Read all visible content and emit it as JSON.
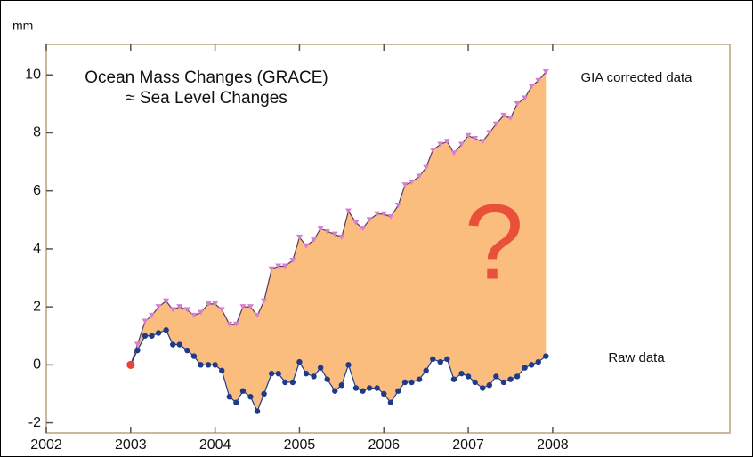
{
  "chart_data": {
    "type": "line",
    "ylabel": "mm",
    "annotations": [
      "Ocean Mass Changes (GRACE)",
      "≈ Sea Level Changes",
      "?"
    ],
    "x": [
      2003,
      2003.08,
      2003.17,
      2003.25,
      2003.33,
      2003.42,
      2003.5,
      2003.58,
      2003.67,
      2003.75,
      2003.83,
      2003.92,
      2004,
      2004.08,
      2004.17,
      2004.25,
      2004.33,
      2004.42,
      2004.5,
      2004.58,
      2004.67,
      2004.75,
      2004.83,
      2004.92,
      2005,
      2005.08,
      2005.17,
      2005.25,
      2005.33,
      2005.42,
      2005.5,
      2005.58,
      2005.67,
      2005.75,
      2005.83,
      2005.92,
      2006,
      2006.08,
      2006.17,
      2006.25,
      2006.33,
      2006.42,
      2006.5,
      2006.58,
      2006.67,
      2006.75,
      2006.83,
      2006.92,
      2007,
      2007.08,
      2007.17,
      2007.25,
      2007.33,
      2007.42,
      2007.5,
      2007.58,
      2007.67,
      2007.75,
      2007.83,
      2007.92
    ],
    "series": [
      {
        "name": "GIA corrected data",
        "color": "#d67fd0",
        "line_color": "#5a3d5a",
        "values": [
          0,
          0.7,
          1.5,
          1.7,
          2.0,
          2.2,
          1.9,
          2.0,
          1.9,
          1.7,
          1.8,
          2.1,
          2.1,
          1.9,
          1.4,
          1.4,
          2.0,
          2.0,
          1.7,
          2.2,
          3.3,
          3.4,
          3.4,
          3.6,
          4.4,
          4.1,
          4.3,
          4.7,
          4.6,
          4.5,
          4.4,
          5.3,
          4.9,
          4.7,
          5.0,
          5.2,
          5.2,
          5.1,
          5.5,
          6.2,
          6.3,
          6.5,
          6.8,
          7.4,
          7.6,
          7.7,
          7.3,
          7.6,
          7.9,
          7.8,
          7.7,
          8.0,
          8.3,
          8.6,
          8.5,
          9.0,
          9.2,
          9.6,
          9.8,
          10.1
        ]
      },
      {
        "name": "Raw data",
        "color": "#1f3a8a",
        "line_color": "#1f3a8a",
        "values": [
          0,
          0.5,
          1.0,
          1.0,
          1.1,
          1.2,
          0.7,
          0.7,
          0.5,
          0.3,
          0,
          0,
          0,
          -0.2,
          -1.1,
          -1.3,
          -0.9,
          -1.1,
          -1.6,
          -1.0,
          -0.3,
          -0.3,
          -0.6,
          -0.6,
          0.1,
          -0.3,
          -0.4,
          -0.1,
          -0.5,
          -0.9,
          -0.7,
          0,
          -0.8,
          -0.9,
          -0.8,
          -0.8,
          -1.0,
          -1.3,
          -0.9,
          -0.6,
          -0.6,
          -0.5,
          -0.2,
          0.2,
          0.1,
          0.2,
          -0.5,
          -0.3,
          -0.4,
          -0.6,
          -0.8,
          -0.7,
          -0.4,
          -0.6,
          -0.5,
          -0.4,
          -0.1,
          0,
          0.1,
          0.3
        ]
      }
    ],
    "fill_between_color": "#fbbd7e",
    "start_marker_color": "#e8433a",
    "annotation_color": "#e8503a",
    "xlim": [
      2002,
      2010.1
    ],
    "xticks": [
      2002,
      2003,
      2004,
      2005,
      2006,
      2007,
      2008
    ],
    "ylim": [
      -2.35,
      11.05
    ],
    "yticks": [
      -2,
      0,
      2,
      4,
      6,
      8,
      10
    ]
  }
}
